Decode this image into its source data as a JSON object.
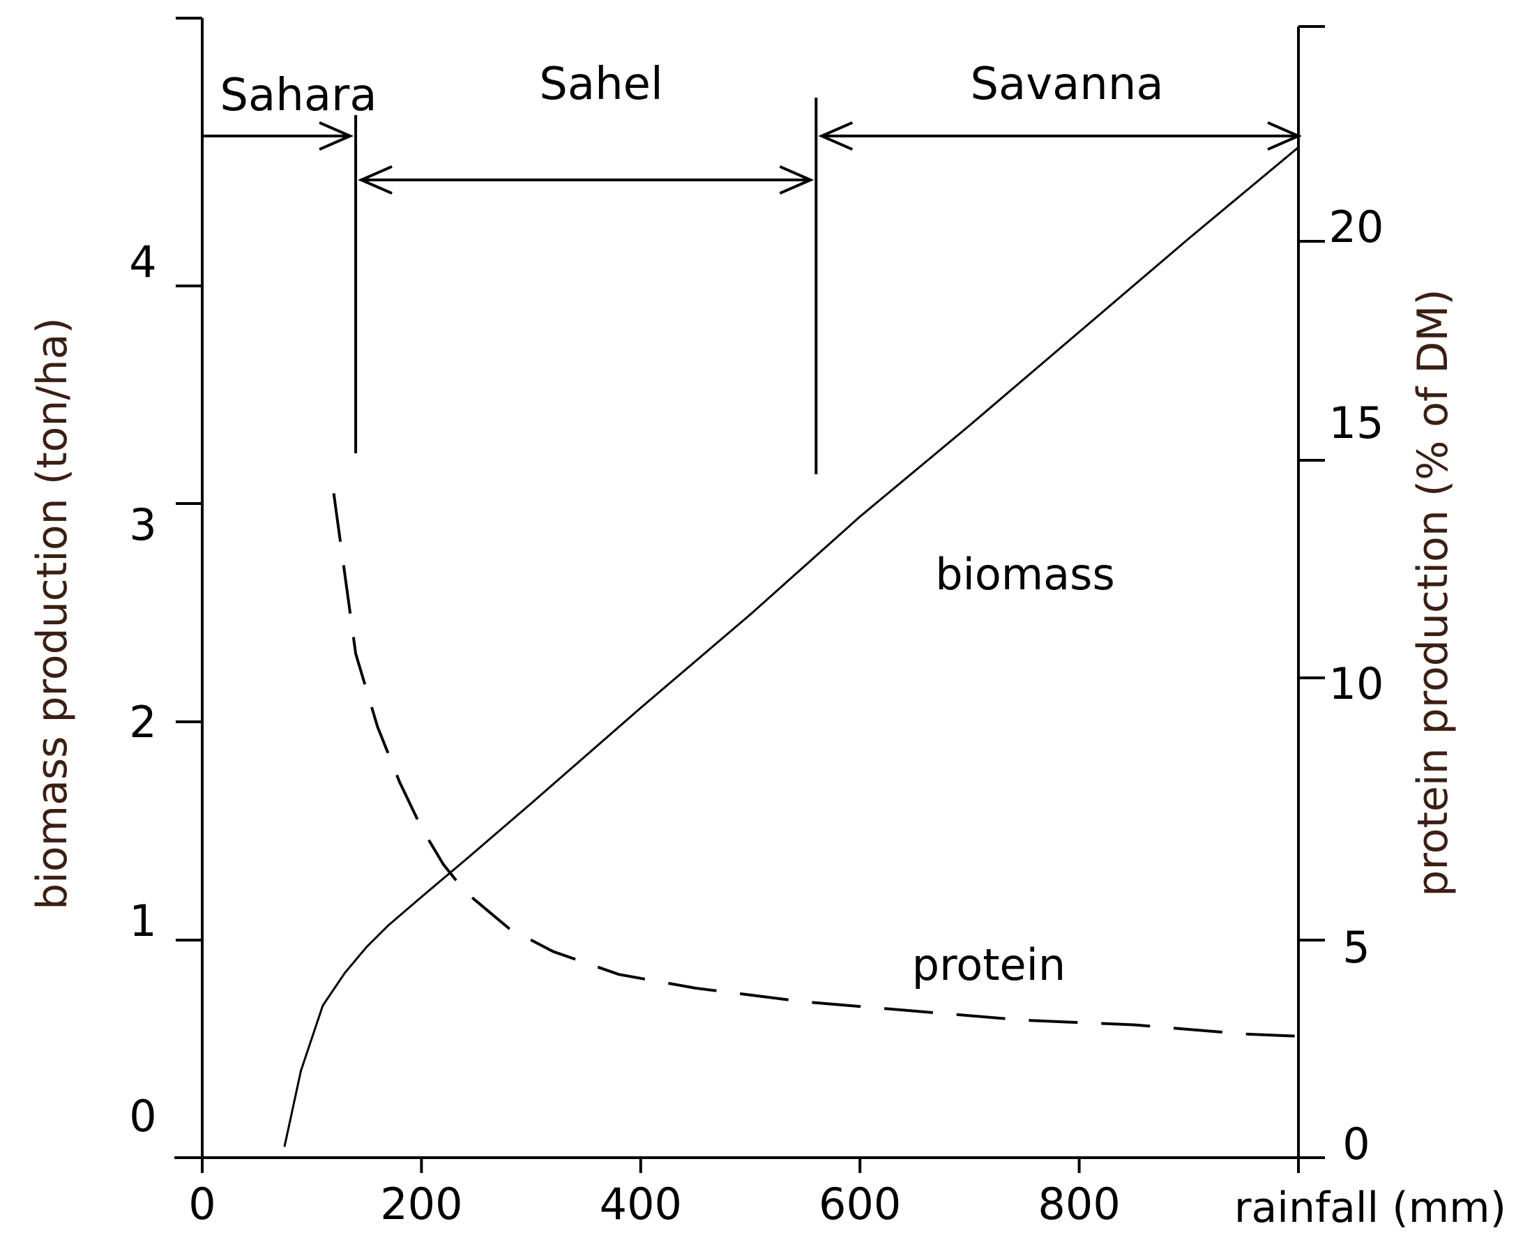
{
  "chart_data": {
    "type": "line",
    "xlabel": "rainfall (mm)",
    "ylabel_left": "biomass production (ton/ha)",
    "ylabel_right": "protein production (% of DM)",
    "xlim": [
      0,
      1000
    ],
    "ylim_left": [
      -0.25,
      4.5
    ],
    "ylim_right": [
      0,
      20
    ],
    "x_ticks": [
      "0",
      "200",
      "400",
      "600",
      "800"
    ],
    "y_left_ticks": [
      "0",
      "1",
      "2",
      "3",
      "4"
    ],
    "y_right_ticks": [
      "0",
      "5",
      "10",
      "15",
      "20"
    ],
    "zones": [
      {
        "label": "Sahara",
        "from": 0,
        "to": 140
      },
      {
        "label": "Sahel",
        "from": 140,
        "to": 560
      },
      {
        "label": "Savanna",
        "from": 560,
        "to": 1000
      }
    ],
    "series": [
      {
        "name": "biomass",
        "axis": "left",
        "style": "solid",
        "x": [
          75,
          90,
          110,
          130,
          150,
          170,
          200,
          240,
          300,
          400,
          500,
          600,
          700,
          800,
          900,
          1000
        ],
        "y": [
          -0.2,
          0.15,
          0.45,
          0.6,
          0.72,
          0.82,
          0.95,
          1.12,
          1.38,
          1.82,
          2.25,
          2.7,
          3.12,
          3.55,
          3.98,
          4.4
        ]
      },
      {
        "name": "protein",
        "axis": "right",
        "style": "dashed",
        "x": [
          120,
          140,
          160,
          180,
          200,
          220,
          240,
          260,
          280,
          320,
          380,
          450,
          550,
          650,
          750,
          850,
          950,
          1000
        ],
        "y": [
          14.5,
          11.0,
          9.4,
          8.2,
          7.2,
          6.4,
          5.8,
          5.4,
          5.0,
          4.5,
          4.0,
          3.7,
          3.4,
          3.2,
          3.0,
          2.9,
          2.7,
          2.65
        ]
      }
    ],
    "colors": {
      "line": "#000000",
      "axis": "#000000",
      "axis_title": "#3a1f14"
    }
  }
}
